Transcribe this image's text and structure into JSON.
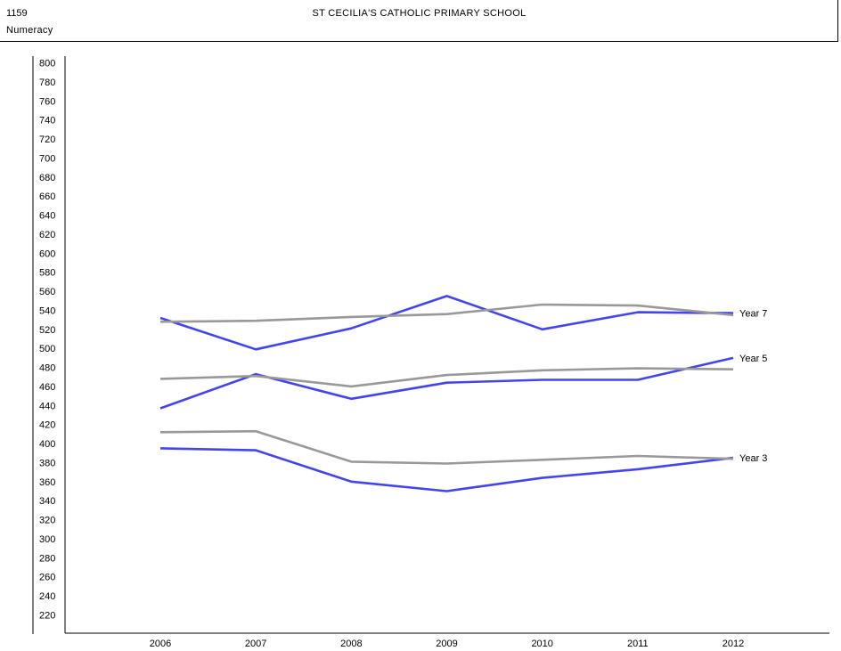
{
  "header": {
    "code": "1159",
    "school": "ST CECILIA'S CATHOLIC PRIMARY SCHOOL",
    "subject": "Numeracy"
  },
  "colors": {
    "school_series": "#4444ee",
    "comparison_series": "#999999"
  },
  "chart_data": {
    "type": "line",
    "title": "",
    "xlabel": "",
    "ylabel": "",
    "x": [
      "2006",
      "2007",
      "2008",
      "2009",
      "2010",
      "2011",
      "2012"
    ],
    "ylim": [
      210,
      800
    ],
    "yticks": [
      220,
      240,
      260,
      280,
      300,
      320,
      340,
      360,
      380,
      400,
      420,
      440,
      460,
      480,
      500,
      520,
      540,
      560,
      580,
      600,
      620,
      640,
      660,
      680,
      700,
      720,
      740,
      760,
      780,
      800
    ],
    "series": [
      {
        "group": "Year 7",
        "style": "school",
        "values": [
          532,
          499,
          521,
          555,
          520,
          538,
          537
        ]
      },
      {
        "group": "Year 7",
        "style": "comparison",
        "values": [
          528,
          529,
          533,
          536,
          546,
          545,
          535
        ]
      },
      {
        "group": "Year 5",
        "style": "school",
        "values": [
          437,
          473,
          447,
          464,
          467,
          467,
          490
        ]
      },
      {
        "group": "Year 5",
        "style": "comparison",
        "values": [
          468,
          471,
          460,
          472,
          477,
          479,
          478
        ]
      },
      {
        "group": "Year 3",
        "style": "school",
        "values": [
          395,
          393,
          360,
          350,
          364,
          373,
          385
        ]
      },
      {
        "group": "Year 3",
        "style": "comparison",
        "values": [
          412,
          413,
          381,
          379,
          383,
          387,
          384
        ]
      }
    ],
    "line_labels": [
      {
        "text": "Year 7",
        "value": 537
      },
      {
        "text": "Year 5",
        "value": 490
      },
      {
        "text": "Year 3",
        "value": 385
      }
    ]
  }
}
